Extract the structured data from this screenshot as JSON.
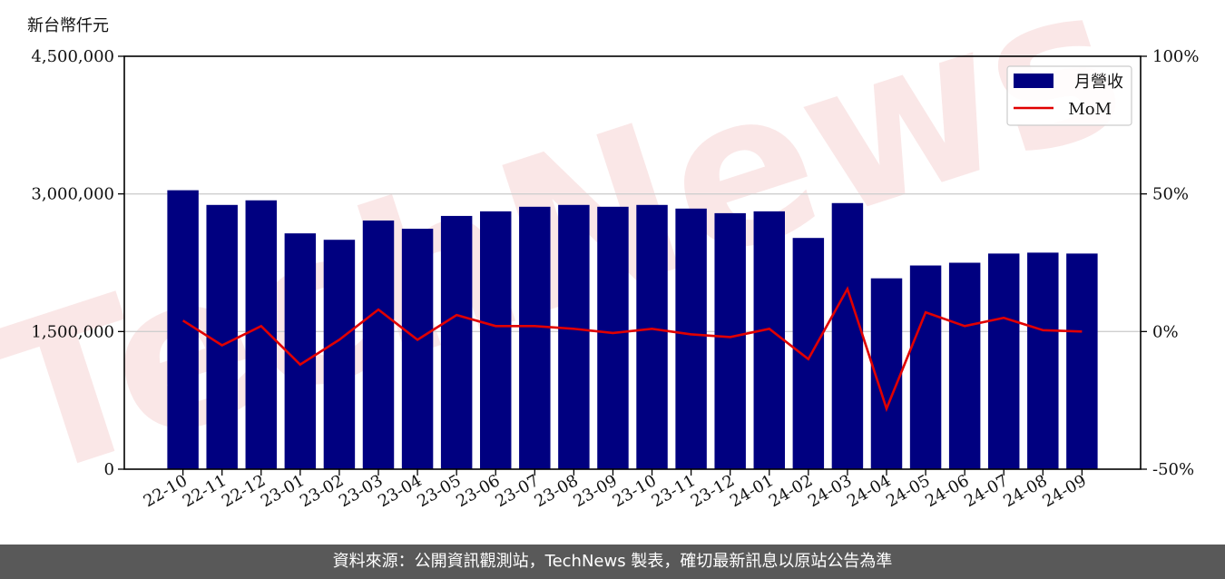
{
  "header": {
    "unit_label": "新台幣仟元"
  },
  "footer": {
    "source_text": "資料來源：公開資訊觀測站，TechNews 製表，確切最新訊息以原站公告為準"
  },
  "chart_data": {
    "type": "bar",
    "categories": [
      "22-10",
      "22-11",
      "22-12",
      "23-01",
      "23-02",
      "23-03",
      "23-04",
      "23-05",
      "23-06",
      "23-07",
      "23-08",
      "23-09",
      "23-10",
      "23-11",
      "23-12",
      "24-01",
      "24-02",
      "24-03",
      "24-04",
      "24-05",
      "24-06",
      "24-07",
      "24-08",
      "24-09"
    ],
    "series": [
      {
        "name": "月營收",
        "type": "bar",
        "axis": "left",
        "color": "#000080",
        "values": [
          3040000,
          2880000,
          2930000,
          2570000,
          2500000,
          2710000,
          2620000,
          2760000,
          2810000,
          2860000,
          2880000,
          2860000,
          2880000,
          2840000,
          2790000,
          2810000,
          2520000,
          2900000,
          2080000,
          2220000,
          2250000,
          2350000,
          2360000,
          2350000
        ]
      },
      {
        "name": "MoM",
        "type": "line",
        "axis": "right",
        "color": "#e00000",
        "values": [
          4,
          -5,
          2,
          -12,
          -3,
          8,
          -3,
          6,
          2,
          2,
          1,
          -0.5,
          1,
          -1,
          -2,
          1,
          -10,
          15.5,
          -28,
          7,
          2,
          5,
          0.5,
          0
        ]
      }
    ],
    "y_left": {
      "lim": [
        0,
        4500000
      ],
      "ticks": [
        0,
        1500000,
        3000000,
        4500000
      ],
      "tick_labels": [
        "0",
        "1,500,000",
        "3,000,000",
        "4,500,000"
      ]
    },
    "y_right": {
      "lim": [
        -50,
        100
      ],
      "ticks": [
        -50,
        0,
        50,
        100
      ],
      "tick_labels": [
        "-50%",
        "0%",
        "50%",
        "100%"
      ]
    },
    "grid": "horizontal",
    "legend": {
      "placement": "top-right"
    },
    "watermark": "TechNews"
  }
}
